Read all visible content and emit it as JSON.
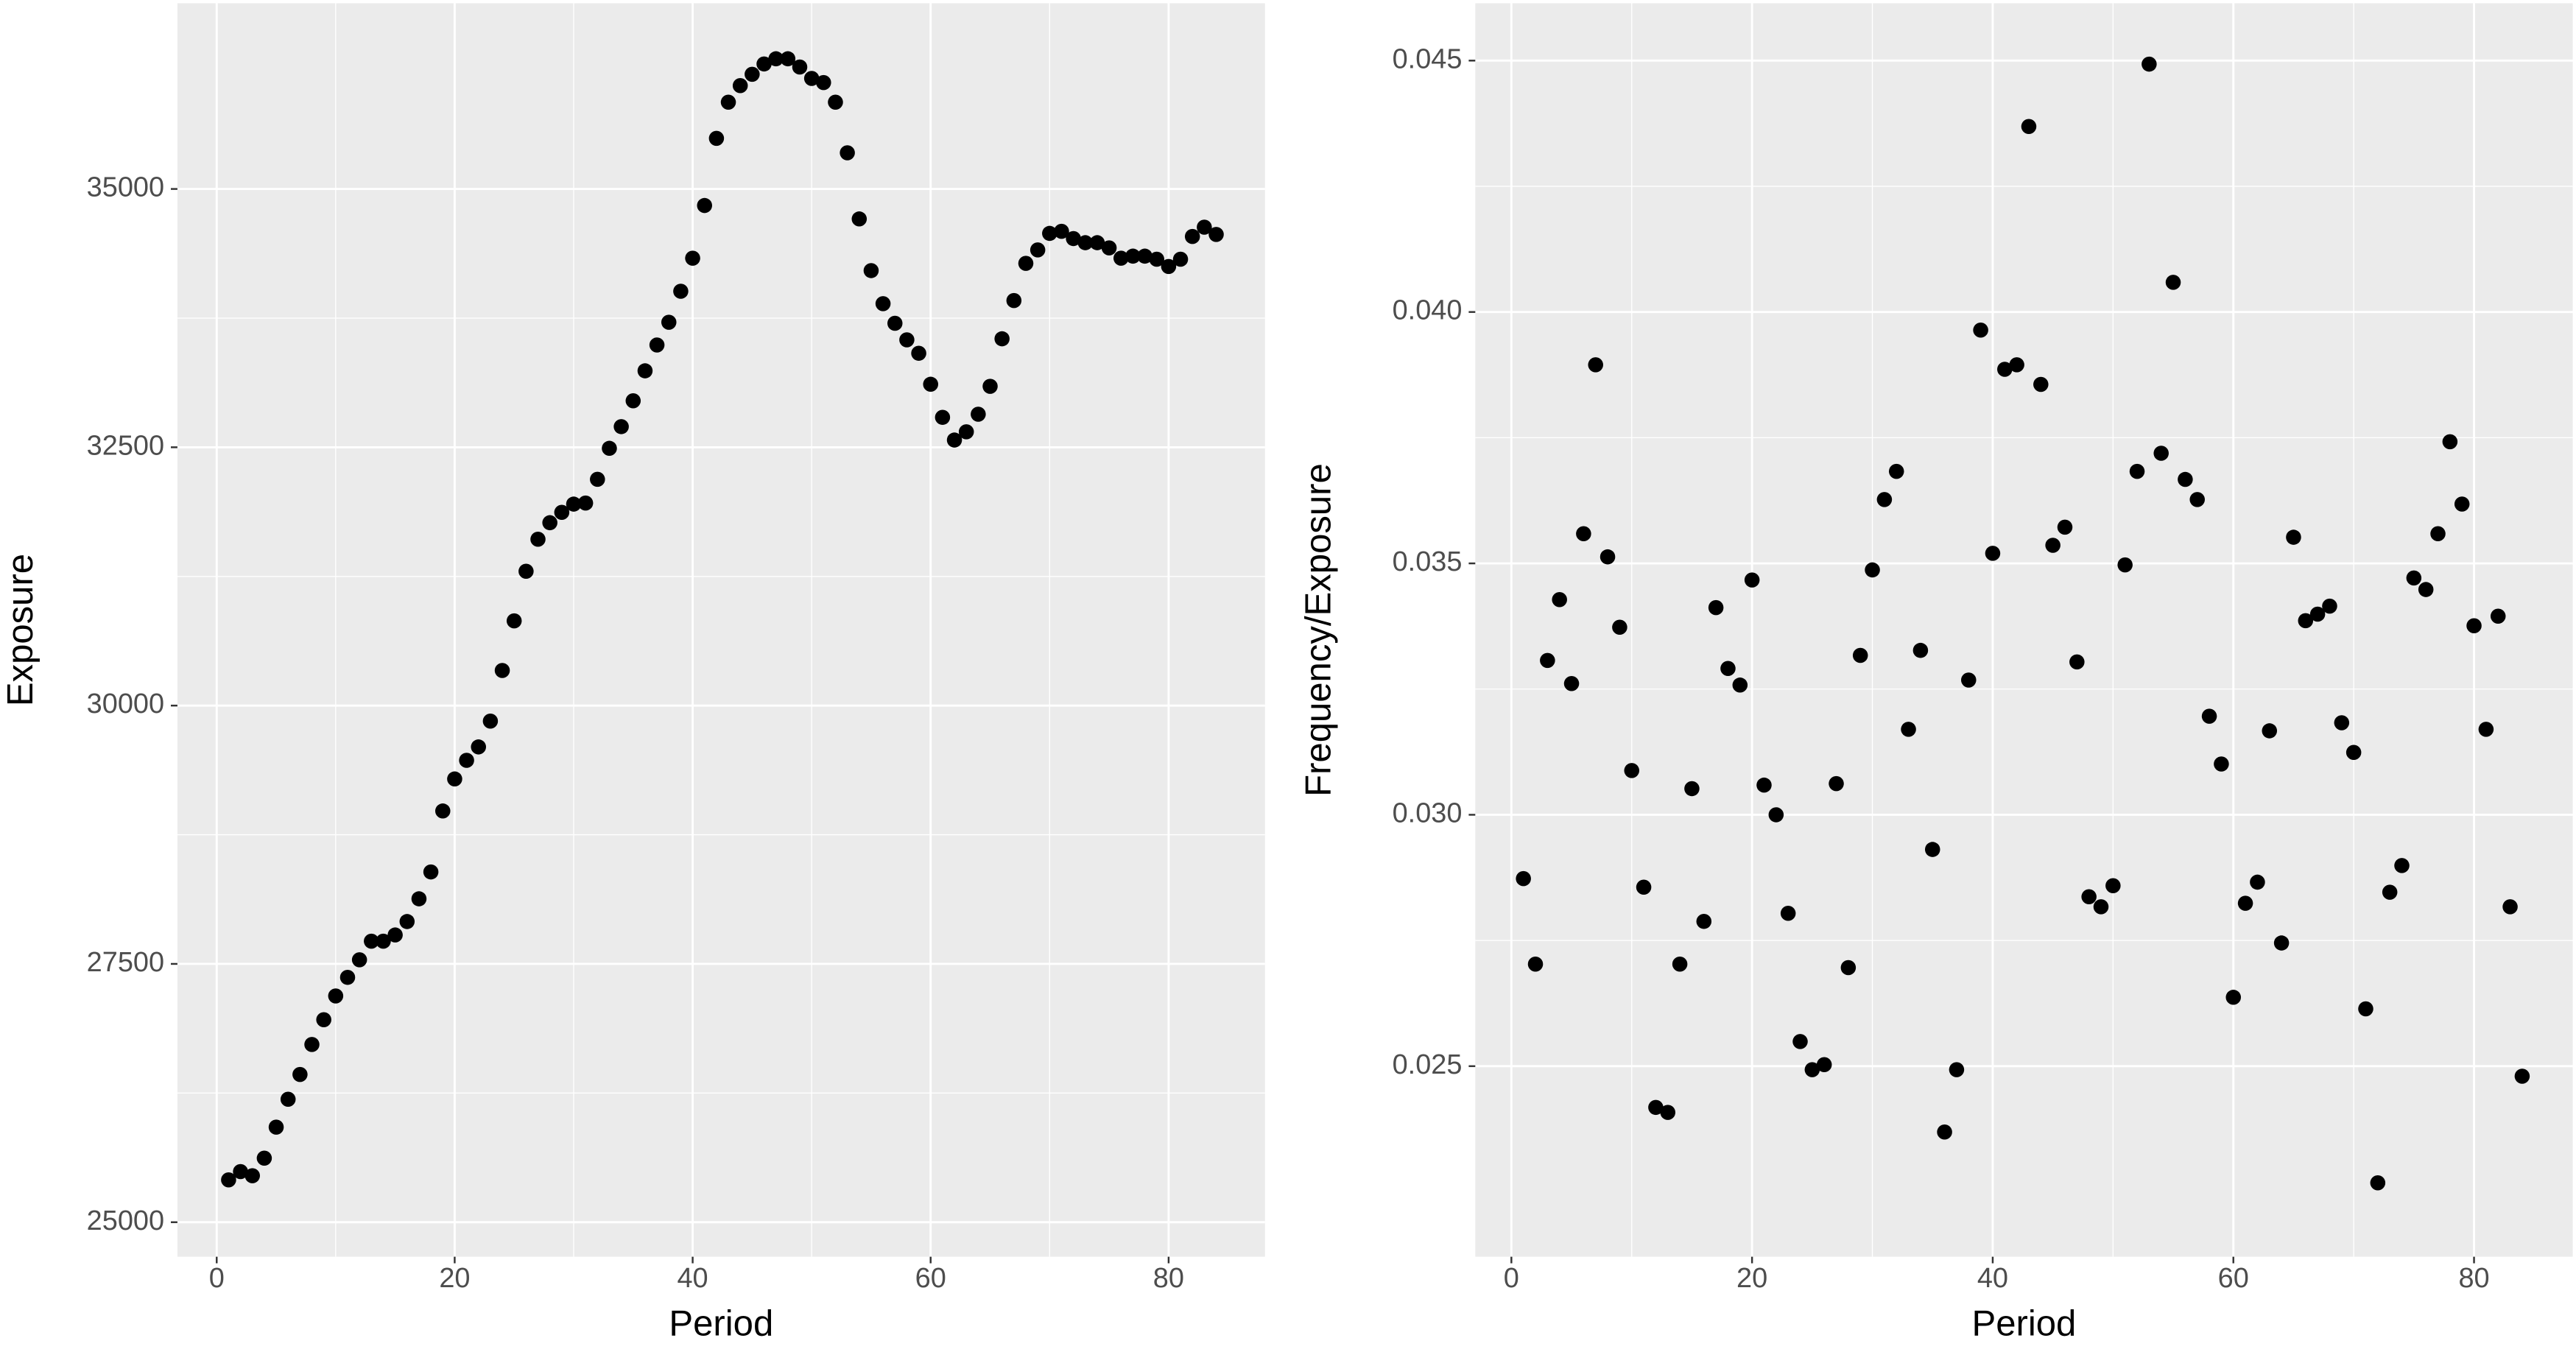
{
  "chart_data": [
    {
      "type": "scatter",
      "xlabel": "Period",
      "ylabel": "Exposure",
      "color": "#000000",
      "grid": true,
      "xlim": [
        -3.3,
        88.1
      ],
      "xticks": [
        0,
        20,
        40,
        60,
        80
      ],
      "ylim": [
        24666,
        36797
      ],
      "yticks": [
        25000,
        27500,
        30000,
        32500,
        35000
      ],
      "x": [
        1,
        2,
        3,
        4,
        5,
        6,
        7,
        8,
        9,
        10,
        11,
        12,
        13,
        14,
        15,
        16,
        17,
        18,
        19,
        20,
        21,
        22,
        23,
        24,
        25,
        26,
        27,
        28,
        29,
        30,
        31,
        32,
        33,
        34,
        35,
        36,
        37,
        38,
        39,
        40,
        41,
        42,
        43,
        44,
        45,
        46,
        47,
        48,
        49,
        50,
        51,
        52,
        53,
        54,
        55,
        56,
        57,
        58,
        59,
        60,
        61,
        62,
        63,
        64,
        65,
        66,
        67,
        68,
        69,
        70,
        71,
        72,
        73,
        74,
        75,
        76,
        77,
        78,
        79,
        80,
        81,
        82,
        83,
        84
      ],
      "values": [
        25410,
        25490,
        25450,
        25620,
        25920,
        26190,
        26430,
        26720,
        26960,
        27190,
        27370,
        27540,
        27720,
        27720,
        27780,
        27910,
        28130,
        28390,
        28980,
        29290,
        29470,
        29600,
        29850,
        30340,
        30820,
        31300,
        31610,
        31770,
        31870,
        31950,
        31960,
        32190,
        32490,
        32700,
        32950,
        33240,
        33490,
        33710,
        34010,
        34330,
        34840,
        35490,
        35840,
        36000,
        36110,
        36210,
        36260,
        36260,
        36180,
        36070,
        36030,
        35840,
        35350,
        34710,
        34210,
        33890,
        33700,
        33540,
        33410,
        33110,
        32790,
        32570,
        32650,
        32820,
        33090,
        33550,
        33920,
        34280,
        34410,
        34570,
        34590,
        34520,
        34480,
        34480,
        34430,
        34330,
        34350,
        34350,
        34320,
        34250,
        34320,
        34540,
        34630,
        34560
      ]
    },
    {
      "type": "scatter",
      "xlabel": "Period",
      "ylabel": "Frequency/Exposure",
      "color": "#000000",
      "grid": true,
      "xlim": [
        -3.0,
        88.2
      ],
      "xticks": [
        0,
        20,
        40,
        60,
        80
      ],
      "ylim": [
        0.02121,
        0.04614
      ],
      "yticks": [
        0.025,
        {
          "value": 0.03,
          "label": "0.030"
        },
        0.035,
        {
          "value": 0.04,
          "label": "0.040"
        },
        0.045
      ],
      "x": [
        1,
        2,
        3,
        4,
        5,
        6,
        7,
        8,
        9,
        10,
        11,
        12,
        13,
        14,
        15,
        16,
        17,
        18,
        19,
        20,
        21,
        22,
        23,
        24,
        25,
        26,
        27,
        28,
        29,
        30,
        31,
        32,
        33,
        34,
        35,
        36,
        37,
        38,
        39,
        40,
        41,
        42,
        43,
        44,
        45,
        46,
        47,
        48,
        49,
        50,
        51,
        52,
        53,
        54,
        55,
        56,
        57,
        58,
        59,
        60,
        61,
        62,
        63,
        64,
        65,
        66,
        67,
        68,
        69,
        70,
        71,
        72,
        73,
        74,
        75,
        76,
        77,
        78,
        79,
        80,
        81,
        82,
        83,
        84
      ],
      "values": [
        0.02873,
        0.02703,
        0.03307,
        0.03428,
        0.03261,
        0.03559,
        0.03895,
        0.03513,
        0.03373,
        0.03088,
        0.02856,
        0.02418,
        0.02408,
        0.02703,
        0.03052,
        0.02788,
        0.03412,
        0.03291,
        0.03258,
        0.03467,
        0.03059,
        0.03,
        0.02804,
        0.02549,
        0.02493,
        0.02503,
        0.03062,
        0.02696,
        0.03317,
        0.03487,
        0.03627,
        0.03683,
        0.0317,
        0.03327,
        0.02931,
        0.02369,
        0.02493,
        0.03268,
        0.03964,
        0.0352,
        0.03886,
        0.03895,
        0.04369,
        0.03856,
        0.03536,
        0.03572,
        0.03304,
        0.02837,
        0.02817,
        0.02859,
        0.03497,
        0.03683,
        0.04493,
        0.03719,
        0.04059,
        0.03667,
        0.03627,
        0.03196,
        0.03101,
        0.02637,
        0.02824,
        0.02866,
        0.03167,
        0.02745,
        0.03552,
        0.03386,
        0.03399,
        0.03415,
        0.03183,
        0.03124,
        0.02614,
        0.02268,
        0.02846,
        0.02899,
        0.03471,
        0.03448,
        0.03559,
        0.03742,
        0.03618,
        0.03376,
        0.0317,
        0.03395,
        0.02817,
        0.0248
      ]
    }
  ]
}
